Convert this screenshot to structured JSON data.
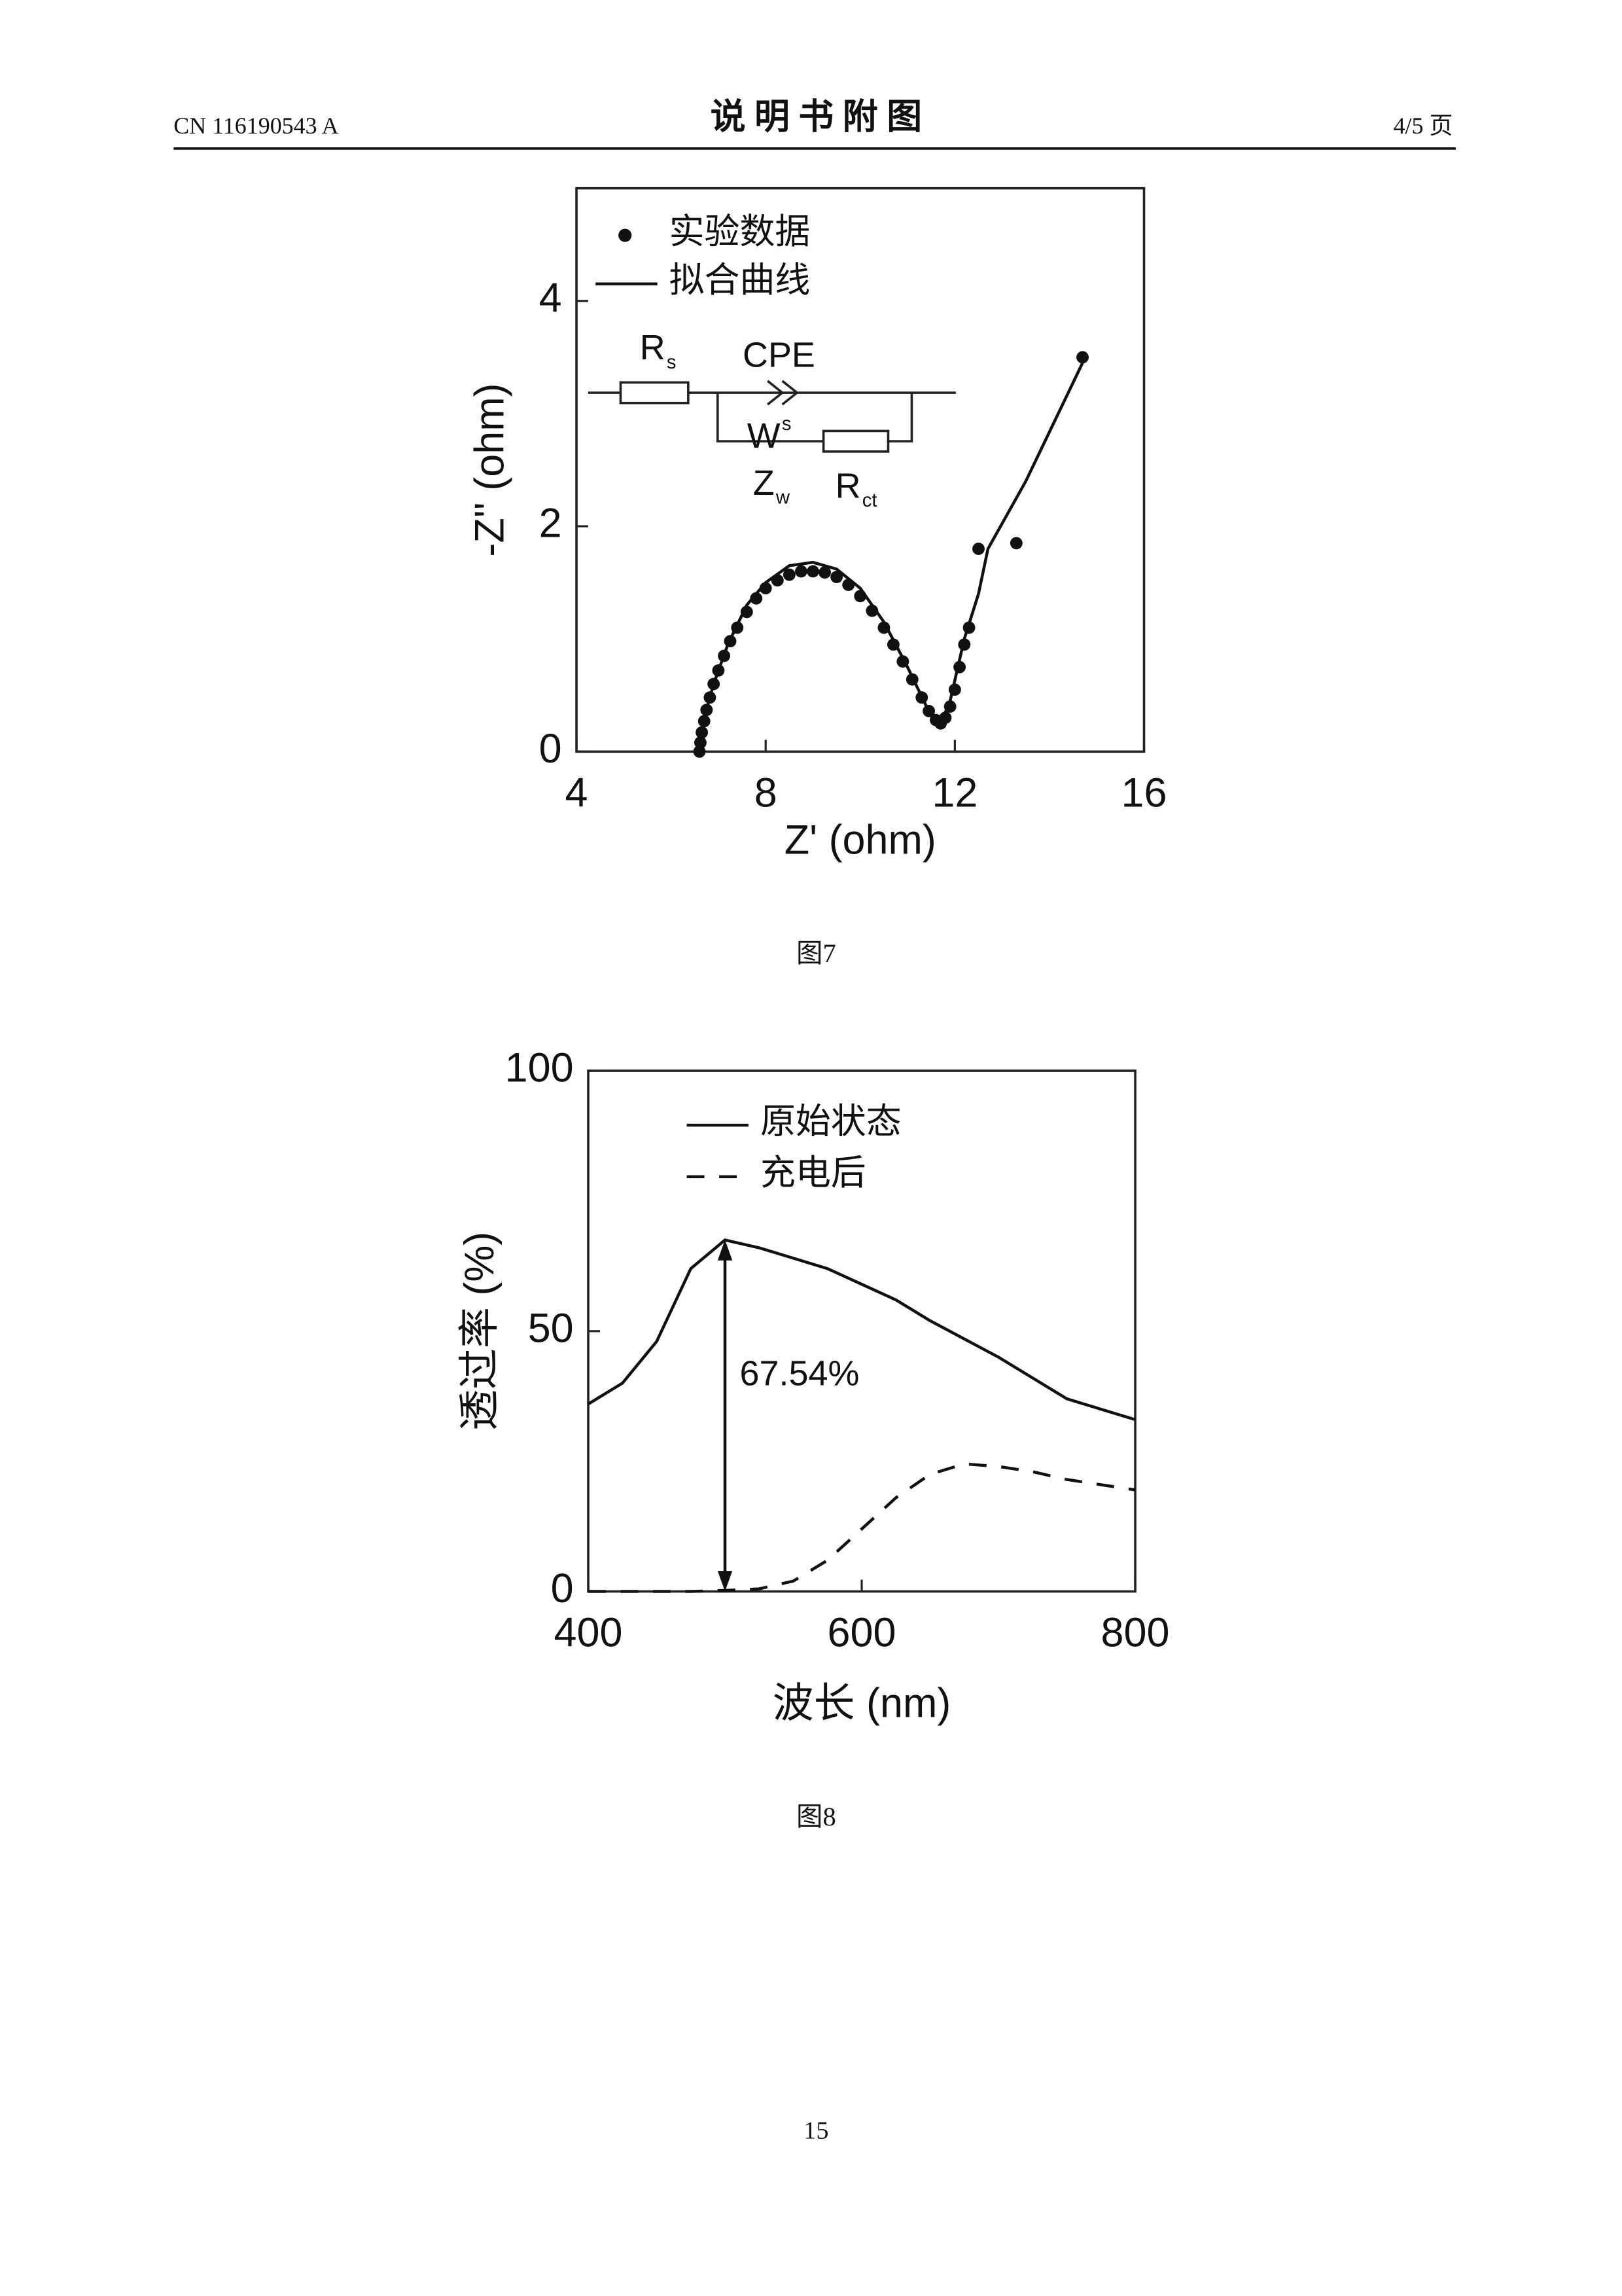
{
  "header": {
    "left": "CN 116190543 A",
    "title": "说 明 书 附 图",
    "right": "4/5 页"
  },
  "chart_data": [
    {
      "type": "scatter",
      "xlabel": "Z' (ohm)",
      "ylabel": "-Z'' (ohm)",
      "xlim": [
        4,
        16
      ],
      "xticks": [
        4,
        8,
        12,
        16
      ],
      "ylim": [
        0,
        5
      ],
      "yticks": [
        0,
        2,
        4
      ],
      "grid": false,
      "series": [
        {
          "name": "实验数据",
          "color": "#111111",
          "style": "markers",
          "x": [
            6.6,
            6.62,
            6.65,
            6.7,
            6.75,
            6.82,
            6.9,
            7.0,
            7.12,
            7.25,
            7.4,
            7.6,
            7.8,
            8.0,
            8.25,
            8.5,
            8.75,
            9.0,
            9.25,
            9.5,
            9.75,
            10.0,
            10.25,
            10.5,
            10.7,
            10.9,
            11.1,
            11.3,
            11.45,
            11.6,
            11.7,
            11.8,
            11.9,
            12.0,
            12.1,
            12.2,
            12.3,
            12.5,
            13.3,
            14.7
          ],
          "values": [
            0.0,
            0.08,
            0.17,
            0.27,
            0.37,
            0.48,
            0.6,
            0.72,
            0.85,
            0.98,
            1.1,
            1.24,
            1.36,
            1.45,
            1.52,
            1.57,
            1.6,
            1.6,
            1.59,
            1.55,
            1.48,
            1.38,
            1.25,
            1.1,
            0.95,
            0.8,
            0.64,
            0.48,
            0.36,
            0.28,
            0.25,
            0.3,
            0.4,
            0.55,
            0.75,
            0.95,
            1.1,
            1.8,
            1.85,
            3.5
          ]
        },
        {
          "name": "拟合曲线",
          "color": "#111111",
          "style": "line",
          "x": [
            6.55,
            6.7,
            6.9,
            7.2,
            7.6,
            8.0,
            8.5,
            9.0,
            9.5,
            10.0,
            10.5,
            11.0,
            11.4,
            11.7,
            11.9,
            12.2,
            12.5,
            12.7,
            13.5,
            14.7
          ],
          "values": [
            0.0,
            0.3,
            0.6,
            0.95,
            1.3,
            1.5,
            1.65,
            1.68,
            1.62,
            1.45,
            1.15,
            0.75,
            0.4,
            0.25,
            0.45,
            1.0,
            1.4,
            1.8,
            2.4,
            3.45
          ]
        }
      ],
      "inset": [
        {
          "text": "R",
          "sub": "s"
        },
        {
          "text": "CPE"
        },
        {
          "text": "W",
          "sup": "s"
        },
        {
          "text": "Z",
          "sub": "w"
        },
        {
          "text": "R",
          "sub": "ct"
        }
      ],
      "caption": "图7"
    },
    {
      "type": "line",
      "xlabel": "波长 (nm)",
      "ylabel": "透过率 (%)",
      "xlim": [
        400,
        800
      ],
      "xticks": [
        400,
        600,
        800
      ],
      "ylim": [
        0,
        100
      ],
      "yticks": [
        0,
        50,
        100
      ],
      "grid": false,
      "x": [
        400,
        425,
        450,
        475,
        500,
        525,
        550,
        575,
        600,
        625,
        650,
        675,
        700,
        725,
        750,
        775,
        800
      ],
      "series": [
        {
          "name": "原始状态",
          "color": "#111111",
          "line_style": "solid",
          "values": [
            36,
            40,
            48,
            62,
            67.5,
            66,
            64,
            62,
            59,
            56,
            52,
            48.5,
            45,
            41,
            37,
            35,
            33
          ]
        },
        {
          "name": "充电后",
          "color": "#111111",
          "line_style": "dashed",
          "values": [
            0,
            0,
            0,
            0,
            0.2,
            0.5,
            2,
            6,
            12,
            18,
            22.5,
            24.5,
            24,
            23,
            21.5,
            20.5,
            19.5
          ]
        }
      ],
      "annotation": {
        "text": "67.54%",
        "x": 500,
        "value": 67.54
      },
      "caption": "图8"
    }
  ],
  "footer": {
    "page": "15"
  }
}
